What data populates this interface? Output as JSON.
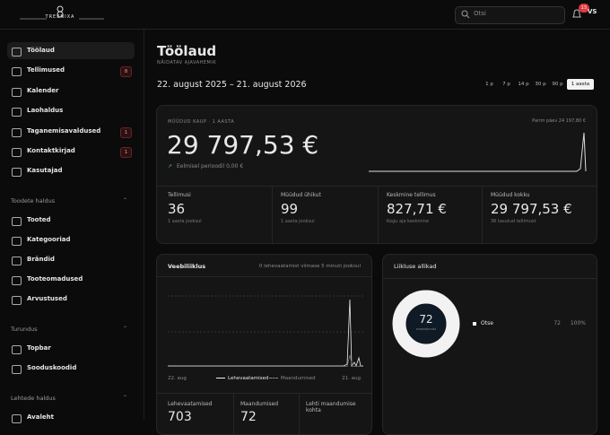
{
  "header": {
    "logo": "TREENIXA",
    "search_placeholder": "Otsi",
    "notification_count": 15,
    "avatar": "VS"
  },
  "sidebar": {
    "items": [
      {
        "label": "Töölaud"
      },
      {
        "label": "Tellimused",
        "badge": 8
      },
      {
        "label": "Kalender"
      },
      {
        "label": "Laohaldus"
      },
      {
        "label": "Taganemisavaldused",
        "badge": 1
      },
      {
        "label": "Kontaktkirjad",
        "badge": 1
      },
      {
        "label": "Kasutajad"
      }
    ],
    "groups": [
      {
        "title": "Toodete haldus",
        "items": [
          {
            "label": "Tooted"
          },
          {
            "label": "Kategooriad"
          },
          {
            "label": "Brändid"
          },
          {
            "label": "Tooteomadused"
          },
          {
            "label": "Arvustused"
          }
        ]
      },
      {
        "title": "Turundus",
        "items": [
          {
            "label": "Topbar"
          },
          {
            "label": "Sooduskoodid"
          }
        ]
      },
      {
        "title": "Lehtede haldus",
        "items": [
          {
            "label": "Avaleht"
          }
        ]
      }
    ]
  },
  "main": {
    "page_title": "Töölaud",
    "range_label": "NÄIDATAV AJAVAHEMIK",
    "range": "22. august 2025 – 21. august 2026",
    "range_options": [
      "1 p",
      "7 p",
      "14 p",
      "30 p",
      "90 p",
      "1 aasta"
    ],
    "sales": {
      "label": "MÜÜDUD KAUP · 1 AASTA",
      "value": "29 797,53 €",
      "previous": "Eelmisel perioodil 0,00 €",
      "best_day": "Parim päev 24 197,80 €",
      "stats": [
        {
          "label": "Tellimusi",
          "value": 36,
          "note": "1 aasta jooksul"
        },
        {
          "label": "Müüdud ühikut",
          "value": 99,
          "note": "1 aasta jooksul"
        },
        {
          "label": "Keskmine tellimus",
          "value": "827,71 €",
          "note": "Kogu aja keskmine"
        },
        {
          "label": "Müüdud kokku",
          "value": "29 797,53 €",
          "note": "36 tasutud tellimust"
        }
      ]
    },
    "traffic": {
      "title": "Veebiliiklus",
      "live": "0 lehevaatamist viimase 5 minuti jooksul",
      "x_start": "22. aug",
      "x_end": "21. aug",
      "legend": [
        "Lehevaatamised",
        "Maandumised"
      ],
      "stats": [
        {
          "label": "Lehevaatamised",
          "value": 703
        },
        {
          "label": "Maandumised",
          "value": 72
        },
        {
          "label": "Lehti maandumise kohta"
        }
      ]
    },
    "sources": {
      "title": "Liikluse allikad",
      "total": 72,
      "total_label": "maandumist",
      "items": [
        {
          "name": "Otse",
          "count": 72,
          "share": "100%"
        }
      ]
    }
  }
}
